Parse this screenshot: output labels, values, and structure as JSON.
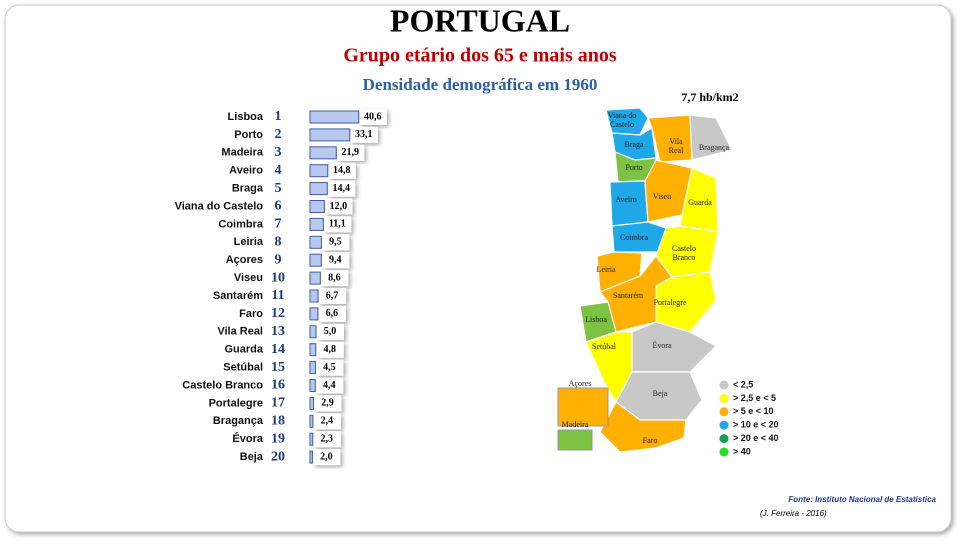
{
  "chart_data": {
    "type": "bar",
    "title": "PORTUGAL",
    "subtitle": "Grupo etário dos 65 e mais anos",
    "subtitle2": "Densidade demográfica em 1960",
    "categories": [
      "Lisboa",
      "Porto",
      "Madeira",
      "Aveiro",
      "Braga",
      "Viana do Castelo",
      "Coimbra",
      "Leiria",
      "Açores",
      "Viseu",
      "Santarém",
      "Faro",
      "Vila Real",
      "Guarda",
      "Setúbal",
      "Castelo Branco",
      "Portalegre",
      "Bragança",
      "Évora",
      "Beja"
    ],
    "ranks": [
      1,
      2,
      3,
      4,
      5,
      6,
      7,
      8,
      9,
      10,
      11,
      12,
      13,
      14,
      15,
      16,
      17,
      18,
      19,
      20
    ],
    "values": [
      40.6,
      33.1,
      21.9,
      14.8,
      14.4,
      12.0,
      11.1,
      9.5,
      9.4,
      8.6,
      6.7,
      6.6,
      5.0,
      4.8,
      4.5,
      4.4,
      2.9,
      2.4,
      2.3,
      2.0
    ],
    "value_labels": [
      "40,6",
      "33,1",
      "21,9",
      "14,8",
      "14,4",
      "12,0",
      "11,1",
      "9,5",
      "9,4",
      "8,6",
      "6,7",
      "6,6",
      "5,0",
      "4,8",
      "4,5",
      "4,4",
      "2,9",
      "2,4",
      "2,3",
      "2,0"
    ],
    "color": "#b8c8ee"
  },
  "map": {
    "annotation": "7,7 hb/km2",
    "regions": {
      "viana": [
        "Viana do",
        "Castelo"
      ],
      "braga": "Braga",
      "vilareal": [
        "Vila",
        "Real"
      ],
      "braganca": "Bragança",
      "porto": "Porto",
      "aveiro": "Aveiro",
      "viseu": "Viseu",
      "guarda": "Guarda",
      "coimbra": "Coimbra",
      "castelo": [
        "Castelo",
        "Branco"
      ],
      "leiria": "Leiria",
      "santarem": "Santarém",
      "portalegre": "Portalegre",
      "lisboa": "Lisboa",
      "setubal": "Setúbal",
      "evora": "Évora",
      "beja": "Beja",
      "faro": "Faro",
      "acores": "Açores",
      "madeira": "Madeira"
    },
    "legend": [
      {
        "label": "< 2,5",
        "color": "#c8c8c8"
      },
      {
        "label": "> 2,5 e < 5",
        "color": "#ffff00"
      },
      {
        "label": "> 5 e < 10",
        "color": "#ffb000"
      },
      {
        "label": "> 10 e < 20",
        "color": "#1fa8e8"
      },
      {
        "label": "> 20 e < 40",
        "color": "#18a050"
      },
      {
        "label": "> 40",
        "color": "#22e022"
      }
    ]
  },
  "footer": {
    "source": "Fonte: Instituto Nacional de Estatística",
    "author": "(J. Ferreira - 2016)"
  }
}
